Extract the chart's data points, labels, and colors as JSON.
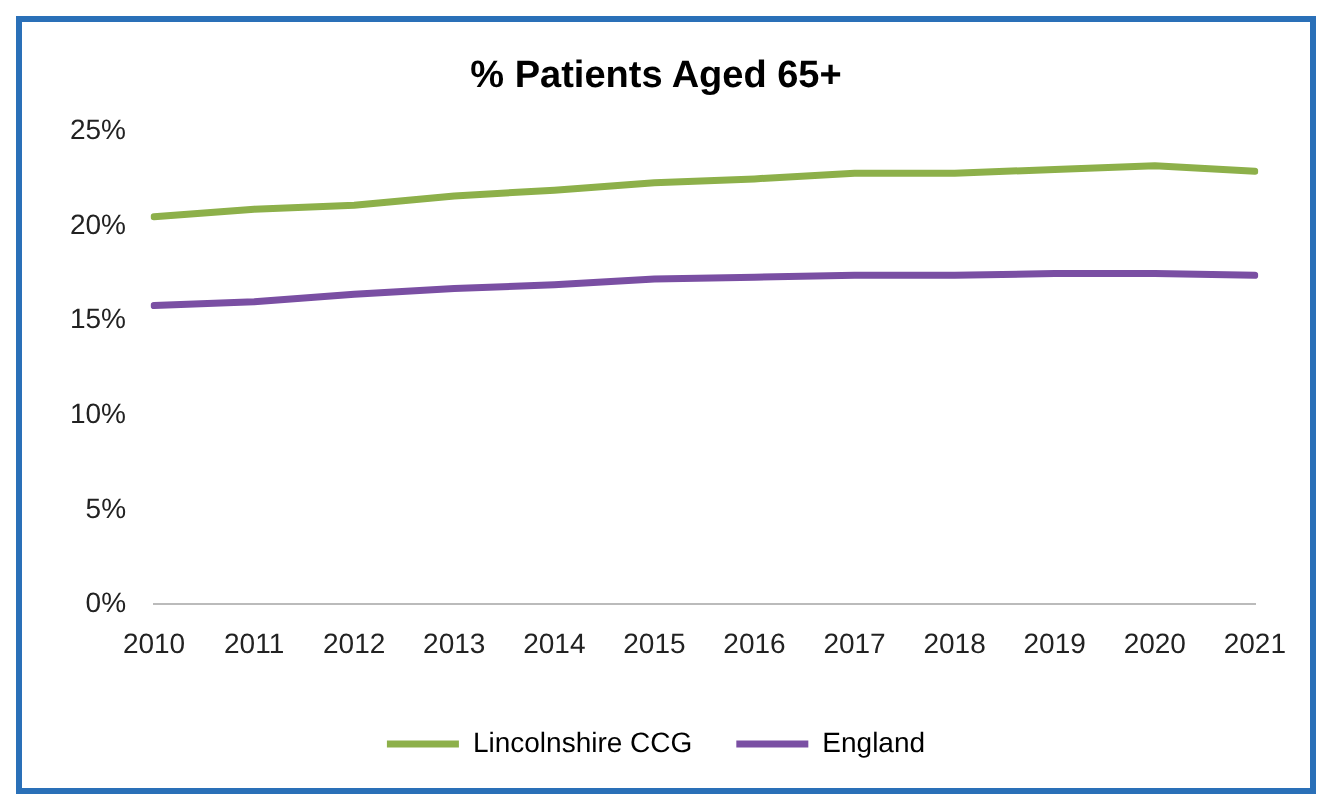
{
  "chart_data": {
    "type": "line",
    "title": "% Patients Aged 65+",
    "categories": [
      "2010",
      "2011",
      "2012",
      "2013",
      "2014",
      "2015",
      "2016",
      "2017",
      "2018",
      "2019",
      "2020",
      "2021"
    ],
    "series": [
      {
        "name": "Lincolnshire CCG",
        "color": "#8db04a",
        "values": [
          20.5,
          20.9,
          21.1,
          21.6,
          21.9,
          22.3,
          22.5,
          22.8,
          22.8,
          23.0,
          23.2,
          22.9
        ]
      },
      {
        "name": "England",
        "color": "#7a4fa3",
        "values": [
          15.8,
          16.0,
          16.4,
          16.7,
          16.9,
          17.2,
          17.3,
          17.4,
          17.4,
          17.5,
          17.5,
          17.4
        ]
      }
    ],
    "ylim": [
      0,
      25
    ],
    "yticks": [
      {
        "value": 0,
        "label": "0%"
      },
      {
        "value": 5,
        "label": "5%"
      },
      {
        "value": 10,
        "label": "10%"
      },
      {
        "value": 15,
        "label": "15%"
      },
      {
        "value": 20,
        "label": "20%"
      },
      {
        "value": 25,
        "label": "25%"
      }
    ],
    "grid": false,
    "legend": "bottom",
    "marker": "none",
    "line_style": "solid"
  }
}
